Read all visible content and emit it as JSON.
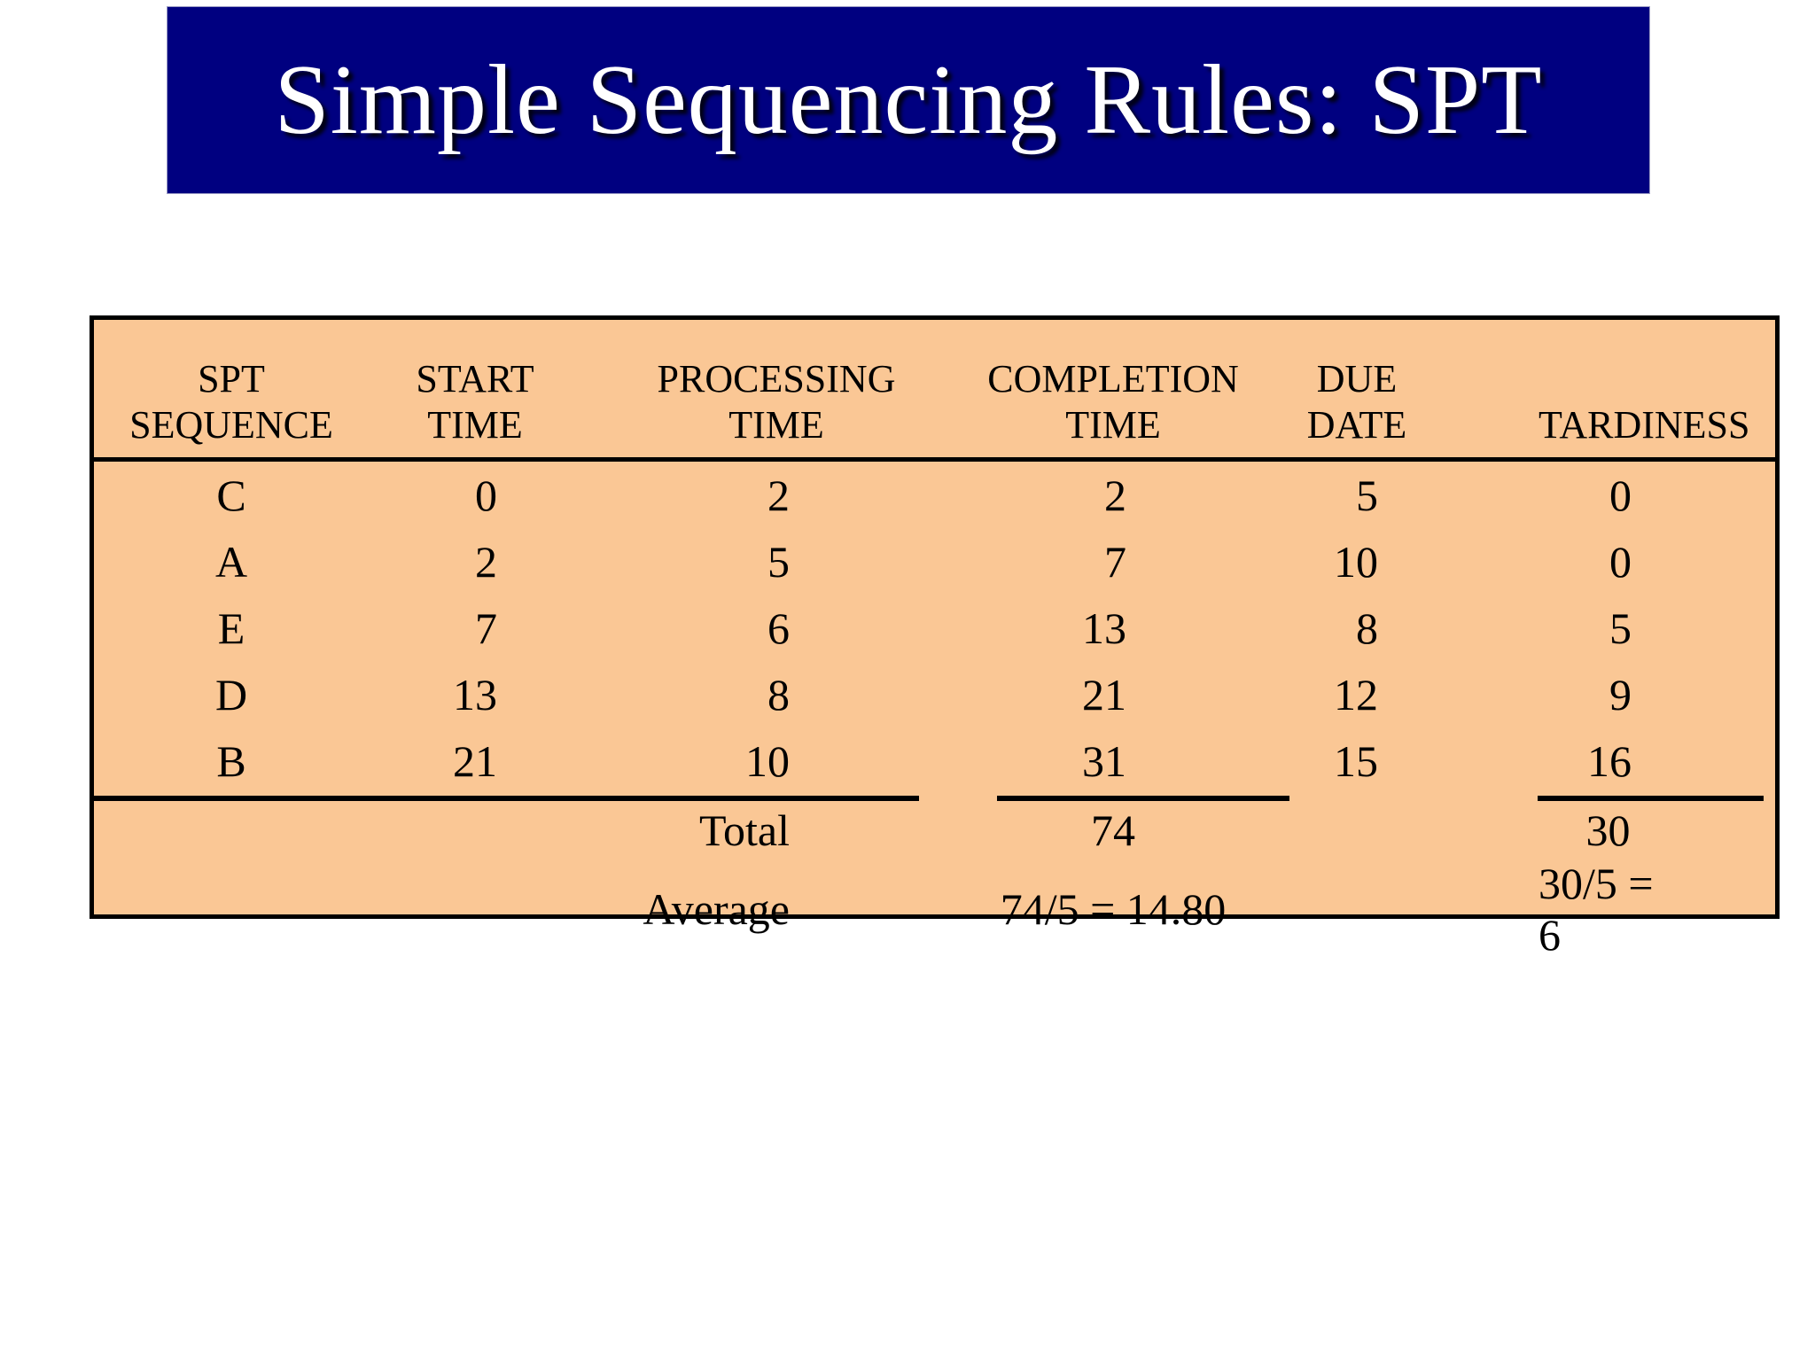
{
  "title": "Simple Sequencing Rules: SPT",
  "colors": {
    "title_bg": "#000080",
    "title_text": "#FFFFFF",
    "table_bg": "#FAC795",
    "border": "#000000"
  },
  "table": {
    "headers": [
      {
        "line1": "SPT",
        "line2": "SEQUENCE"
      },
      {
        "line1": "START",
        "line2": "TIME"
      },
      {
        "line1": "PROCESSING",
        "line2": "TIME"
      },
      {
        "line1": "COMPLETION",
        "line2": "TIME"
      },
      {
        "line1": "DUE",
        "line2": "DATE"
      },
      {
        "line1": "TARDINESS",
        "line2": ""
      }
    ],
    "rows": [
      {
        "sequence": "C",
        "start_time": "0",
        "processing_time": "2",
        "completion_time": "2",
        "due_date": "5",
        "tardiness": "0"
      },
      {
        "sequence": "A",
        "start_time": "2",
        "processing_time": "5",
        "completion_time": "7",
        "due_date": "10",
        "tardiness": "0"
      },
      {
        "sequence": "E",
        "start_time": "7",
        "processing_time": "6",
        "completion_time": "13",
        "due_date": "8",
        "tardiness": "5"
      },
      {
        "sequence": "D",
        "start_time": "13",
        "processing_time": "8",
        "completion_time": "21",
        "due_date": "12",
        "tardiness": "9"
      },
      {
        "sequence": "B",
        "start_time": "21",
        "processing_time": "10",
        "completion_time": "31",
        "due_date": "15",
        "tardiness": "16"
      }
    ],
    "total": {
      "label": "Total",
      "completion_time": "74",
      "tardiness": "30"
    },
    "average": {
      "label": "Average",
      "completion_time": "74/5 = 14.80",
      "tardiness": "30/5 = 6"
    }
  }
}
